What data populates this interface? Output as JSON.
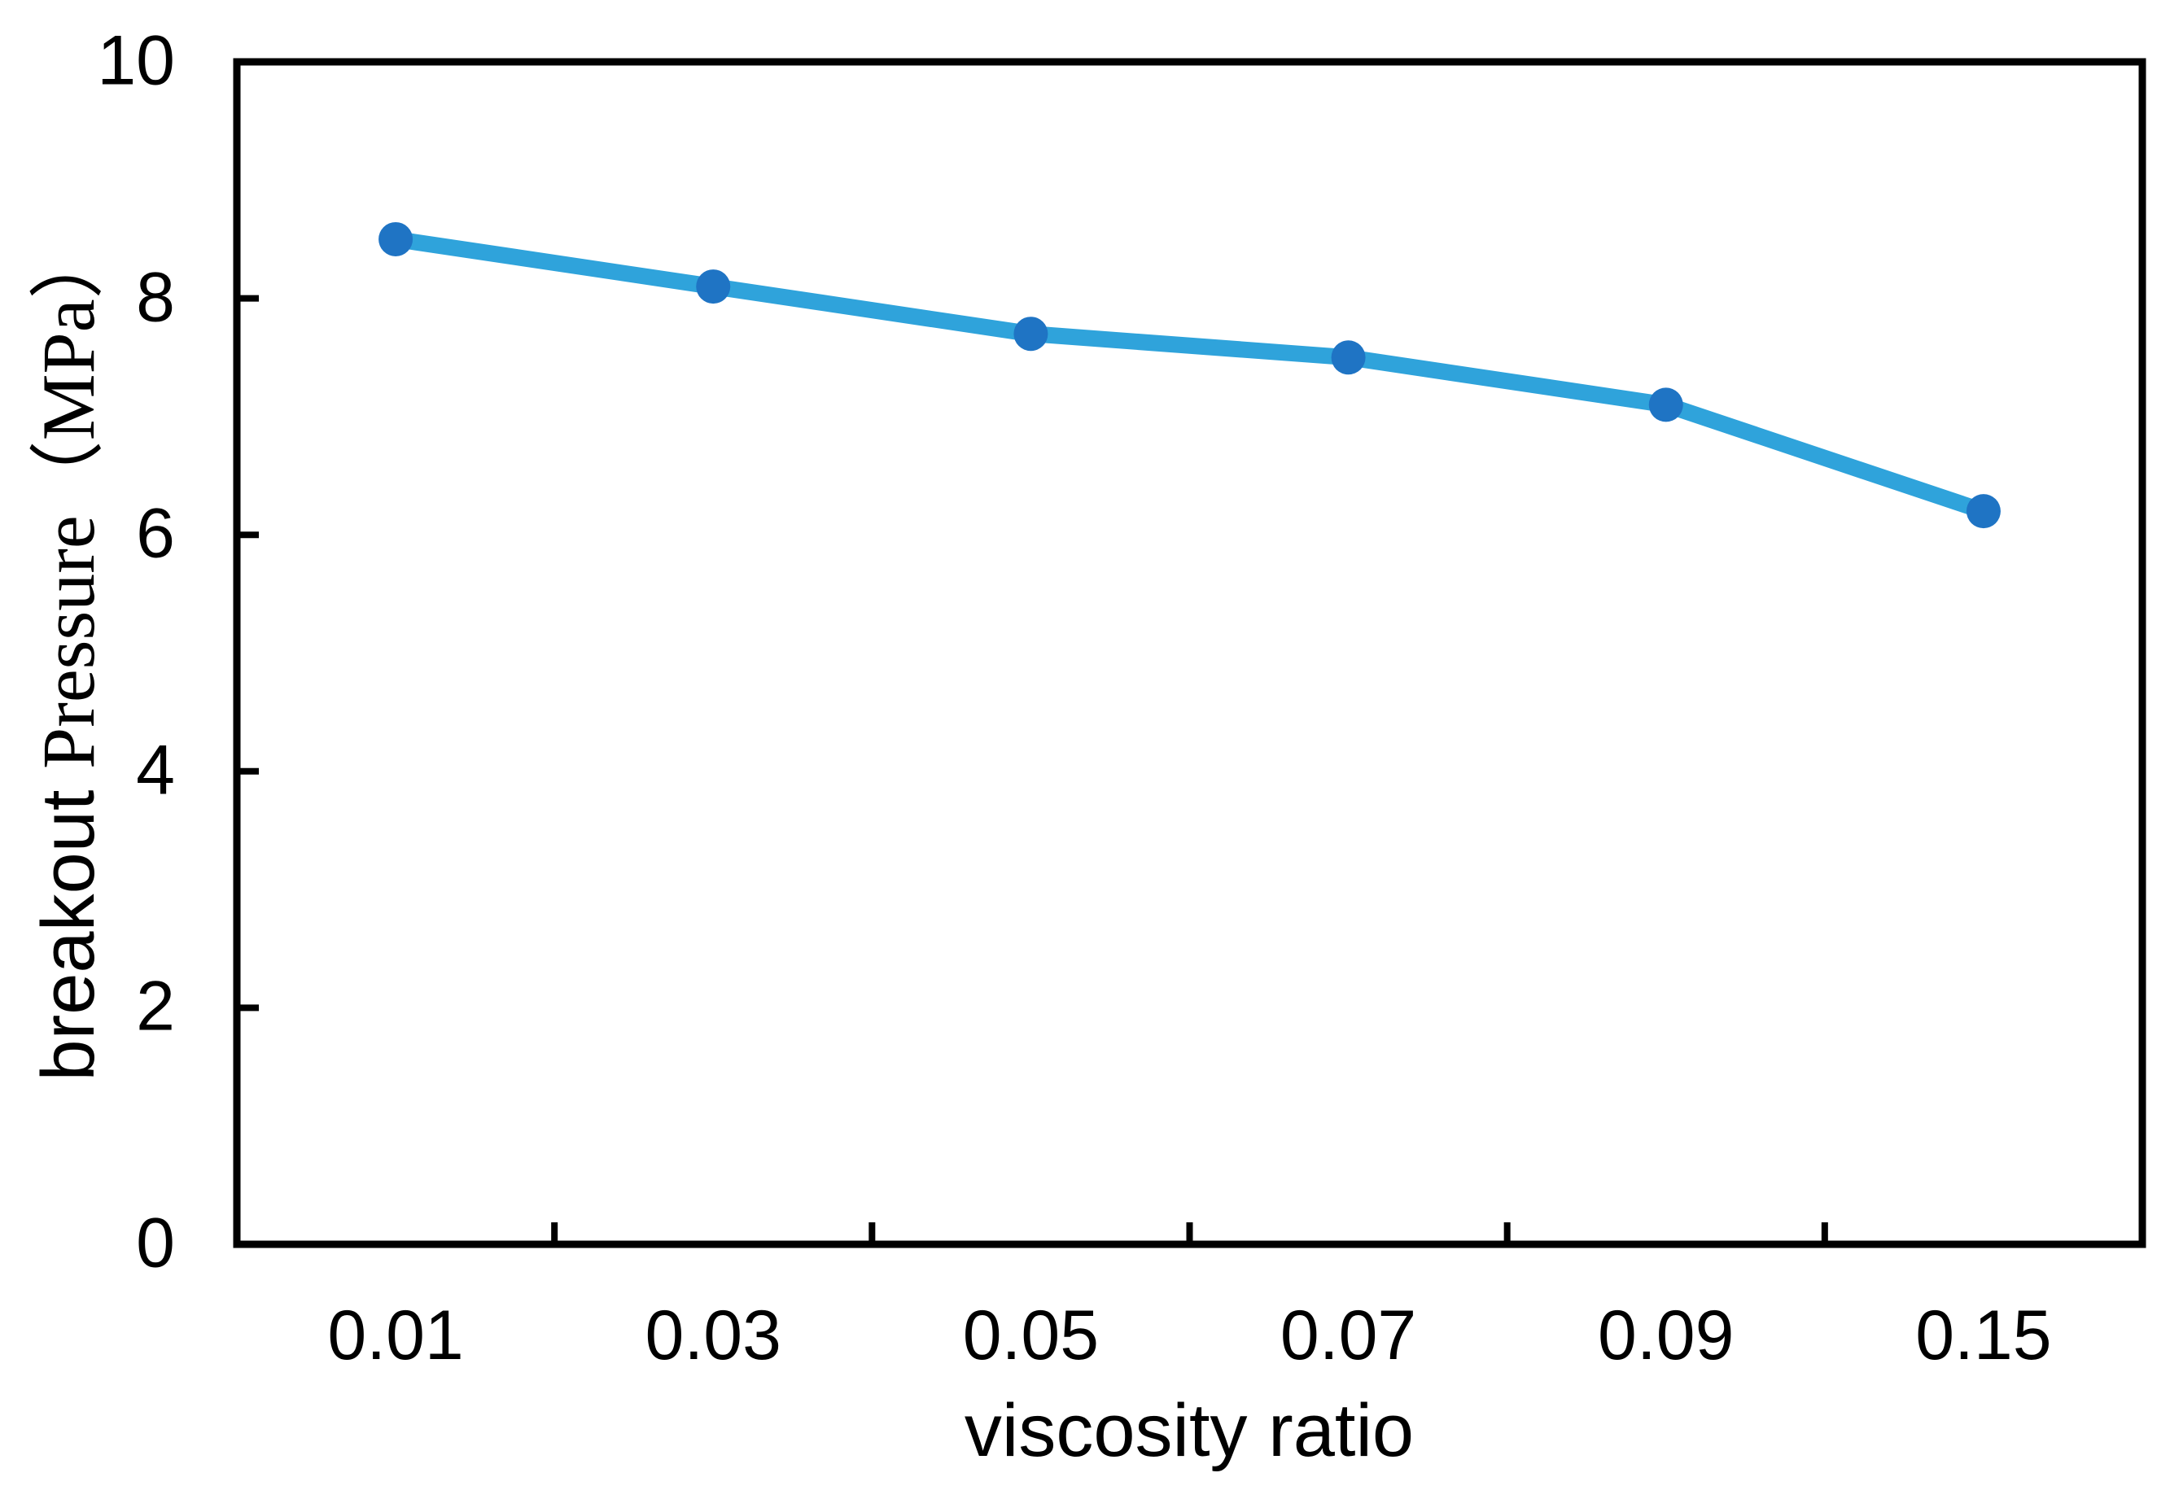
{
  "chart_data": {
    "type": "line",
    "categories": [
      "0.01",
      "0.03",
      "0.05",
      "0.07",
      "0.09",
      "0.15"
    ],
    "values": [
      8.5,
      8.1,
      7.7,
      7.5,
      7.1,
      6.2
    ],
    "xlabel": "viscosity ratio",
    "ylabel": "breakout Pressure（MPa）",
    "ylabel_parts": {
      "sans": "breakout ",
      "serif": "Pressure（MPa）"
    },
    "ylim": [
      0,
      10
    ],
    "yticks": [
      "0",
      "2",
      "4",
      "6",
      "8",
      "10"
    ],
    "grid": false,
    "legend": "none",
    "marker": "circle",
    "line_color": "#2FA3DB",
    "marker_color": "#1F74C4",
    "axis_color": "#000000"
  }
}
